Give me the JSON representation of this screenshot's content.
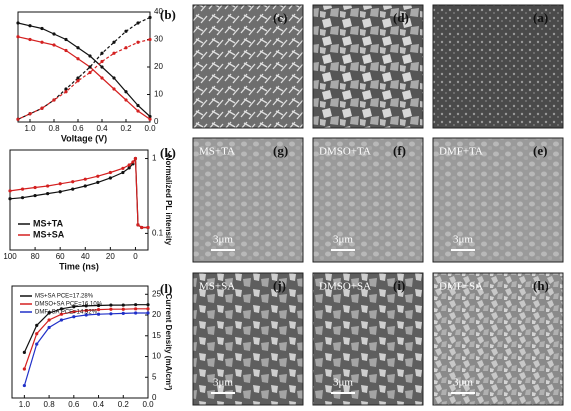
{
  "chart_data": [
    {
      "type": "line",
      "label": "(b)",
      "x_label": "Voltage (V)",
      "x": [
        0,
        0.1,
        0.2,
        0.3,
        0.4,
        0.5,
        0.6,
        0.7,
        0.8,
        0.9,
        1.0,
        1.1
      ],
      "series": [
        {
          "color": "#111111",
          "dash": false,
          "values": [
            2,
            6,
            11,
            16,
            20,
            24,
            27,
            30,
            32,
            34,
            35,
            36
          ]
        },
        {
          "color": "#d42020",
          "dash": false,
          "values": [
            1,
            4,
            8,
            12,
            16,
            20,
            23,
            26,
            28,
            29,
            30,
            31
          ]
        },
        {
          "color": "#111111",
          "dash": true,
          "values": [
            38,
            36,
            33,
            29,
            25,
            20,
            16,
            12,
            8,
            5,
            3,
            1
          ]
        },
        {
          "color": "#d42020",
          "dash": true,
          "values": [
            30,
            29,
            27,
            25,
            22,
            18,
            15,
            11,
            8,
            5,
            3,
            1
          ]
        }
      ],
      "xlim": [
        1.1,
        0
      ],
      "xticks": [
        {
          "value": 1.0,
          "label": "1.0"
        },
        0.8,
        0.6,
        0.4,
        0.2,
        {
          "value": 0,
          "label": "0.0"
        }
      ],
      "ylim": [
        0,
        40
      ],
      "yticks": [
        0,
        10,
        20,
        30,
        40
      ],
      "log": false
    },
    {
      "type": "line",
      "label": "(k)",
      "x_label": "Time (ns)",
      "y_label": "Normalized PL intensity",
      "x": [
        -10,
        -5,
        -2,
        0,
        2,
        5,
        10,
        20,
        30,
        40,
        50,
        60,
        70,
        80,
        90,
        100
      ],
      "series": [
        {
          "name": "MS+TA",
          "color": "#111111",
          "dash": false,
          "values": [
            0.12,
            0.12,
            0.13,
            1,
            0.85,
            0.75,
            0.65,
            0.55,
            0.48,
            0.43,
            0.39,
            0.36,
            0.34,
            0.32,
            0.3,
            0.29
          ]
        },
        {
          "name": "MS+SA",
          "color": "#d42020",
          "dash": false,
          "values": [
            0.12,
            0.12,
            0.13,
            1,
            0.9,
            0.82,
            0.74,
            0.65,
            0.58,
            0.53,
            0.49,
            0.46,
            0.43,
            0.41,
            0.39,
            0.37
          ]
        }
      ],
      "xlim": [
        100,
        -10
      ],
      "xticks": [
        0,
        20,
        40,
        60,
        80,
        100
      ],
      "ylim": [
        0.06,
        1.3
      ],
      "yticks": [
        {
          "value": 0.1,
          "label": "0.1"
        },
        1
      ],
      "log": true
    },
    {
      "type": "line",
      "label": "(l)",
      "x_label": "Voltage (V)",
      "y_label": "Current Density (mA/cm²)",
      "x": [
        0,
        0.1,
        0.2,
        0.3,
        0.4,
        0.5,
        0.6,
        0.7,
        0.8,
        0.9,
        1.0
      ],
      "series": [
        {
          "name": "MS+SA PCE=17.28%",
          "color": "#111111",
          "dash": false,
          "values": [
            22.5,
            22.5,
            22.4,
            22.4,
            22.3,
            22.2,
            22.0,
            21.5,
            20.5,
            17.5,
            11
          ]
        },
        {
          "name": "DMSO+SA PCE=16.10%",
          "color": "#d42020",
          "dash": false,
          "values": [
            21.5,
            21.5,
            21.4,
            21.4,
            21.3,
            21.1,
            20.8,
            20.2,
            18.8,
            15.5,
            7
          ]
        },
        {
          "name": "DMF+SA PCE=14.52%",
          "color": "#2030c8",
          "dash": false,
          "values": [
            20.5,
            20.5,
            20.4,
            20.3,
            20.2,
            20.0,
            19.6,
            18.8,
            17.0,
            13.0,
            3
          ]
        }
      ],
      "xlim": [
        1.1,
        0
      ],
      "xticks": [
        {
          "value": 1.0,
          "label": "1.0"
        },
        0.8,
        0.6,
        0.4,
        0.2,
        {
          "value": 0,
          "label": "0.0"
        }
      ],
      "ylim": [
        0,
        27
      ],
      "yticks": [
        0,
        5,
        10,
        15,
        20,
        25
      ],
      "log": false
    }
  ],
  "panels": [
    {
      "label": "(c)"
    },
    {
      "label": "(d)"
    },
    {
      "label": "(a)"
    },
    {
      "label": "(g)",
      "caption": "MS+TA",
      "scale": "3μm"
    },
    {
      "label": "(f)",
      "caption": "DMSO+TA",
      "scale": "3μm"
    },
    {
      "label": "(e)",
      "caption": "DMF+TA",
      "scale": "3μm"
    },
    {
      "label": "(j)",
      "caption": "MS+SA",
      "scale": "3μm"
    },
    {
      "label": "(i)",
      "caption": "DMSO+SA",
      "scale": "3μm"
    },
    {
      "label": "(h)",
      "caption": "DMF+SA",
      "scale": "3μm"
    }
  ]
}
